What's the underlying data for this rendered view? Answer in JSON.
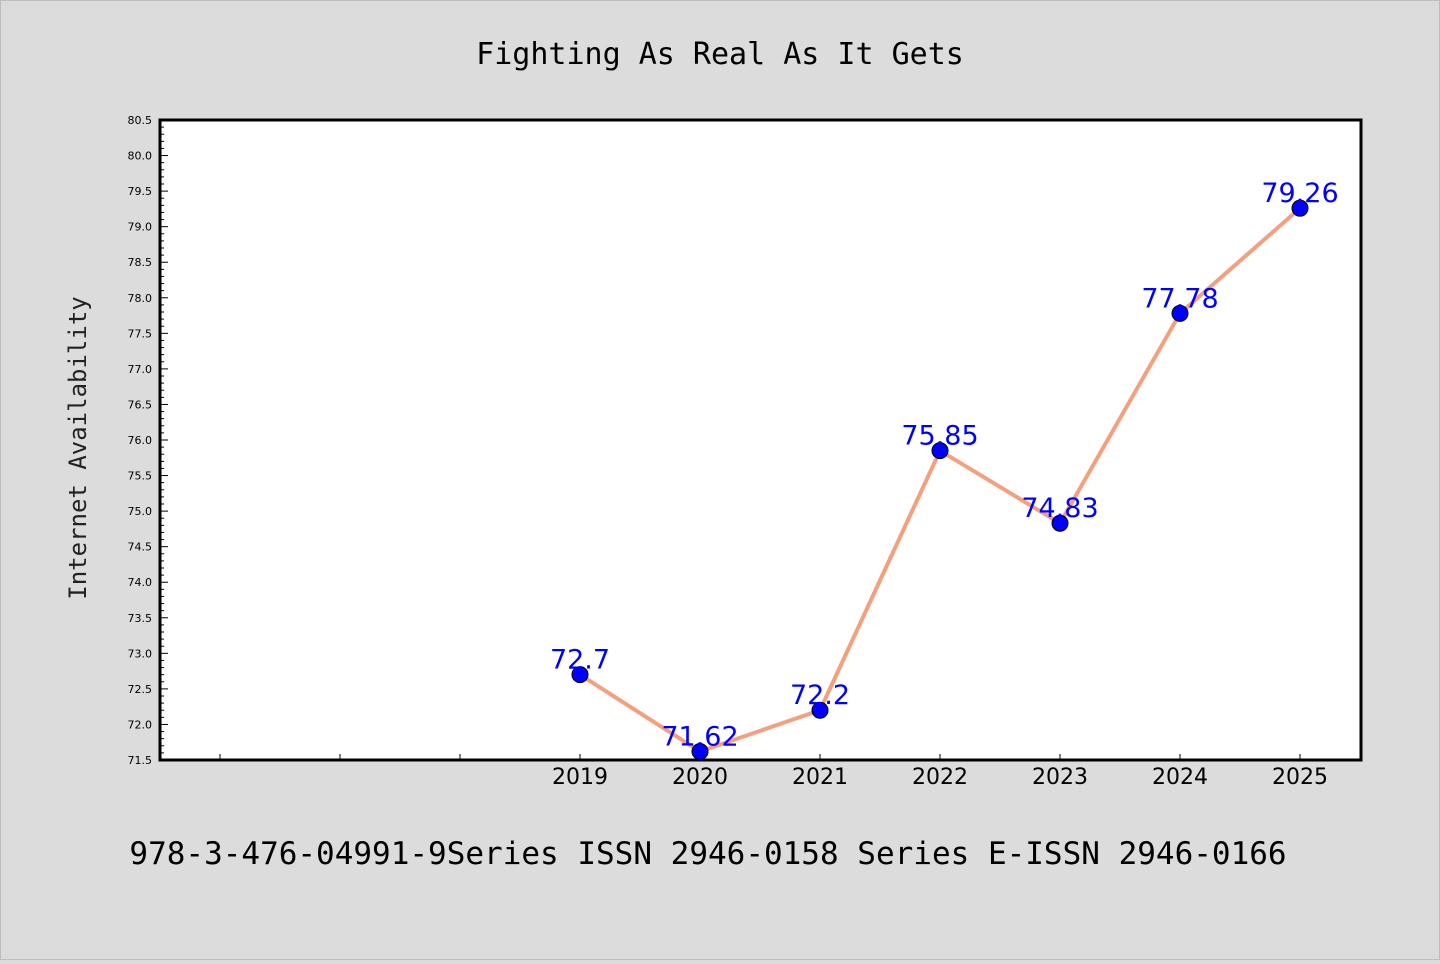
{
  "chart_data": {
    "type": "line",
    "title": "Fighting As Real As It Gets",
    "ylabel": "Internet Availability",
    "xlabel": "",
    "footer": "978-3-476-04991-9Series ISSN 2946-0158 Series E-ISSN 2946-0166",
    "categories": [
      "2019",
      "2020",
      "2021",
      "2022",
      "2023",
      "2024",
      "2025"
    ],
    "values": [
      72.7,
      71.62,
      72.2,
      75.85,
      74.83,
      77.78,
      79.26
    ],
    "value_labels": [
      "72.7",
      "71.62",
      "72.2",
      "75.85",
      "74.83",
      "77.78",
      "79.26"
    ],
    "ylim": [
      71.5,
      80.5
    ],
    "yticks": [
      "71.5",
      "72.0",
      "72.5",
      "73.0",
      "73.5",
      "74.0",
      "74.5",
      "75.0",
      "75.5",
      "76.0",
      "76.5",
      "77.0",
      "77.5",
      "78.0",
      "78.5",
      "79.0",
      "79.5",
      "80.0",
      "80.5"
    ],
    "grid": false,
    "colors": {
      "line": "#f4a07e",
      "marker": "#0000ff",
      "label": "#0000ff",
      "background": "#dcdcdc",
      "plot_background": "#ffffff"
    }
  }
}
